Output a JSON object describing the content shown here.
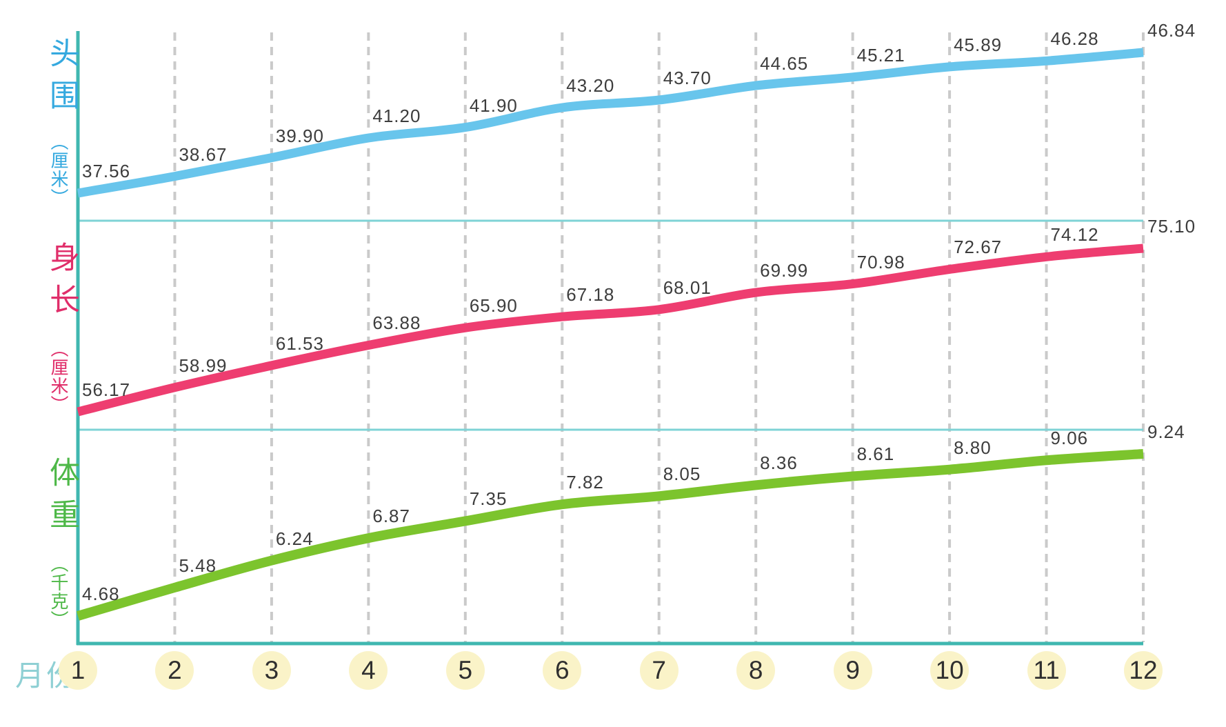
{
  "chart_data": {
    "type": "line",
    "x_label": "月份",
    "x": [
      1,
      2,
      3,
      4,
      5,
      6,
      7,
      8,
      9,
      10,
      11,
      12
    ],
    "value_label_decimals": 2,
    "series": [
      {
        "name": "头围",
        "unit": "（厘米）",
        "line_color": "#68c5ec",
        "title_color": "#35a9df",
        "values": [
          37.56,
          38.67,
          39.9,
          41.2,
          41.9,
          43.2,
          43.7,
          44.65,
          45.21,
          45.89,
          46.28,
          46.84
        ]
      },
      {
        "name": "身长",
        "unit": "（厘米）",
        "line_color": "#ee3d70",
        "title_color": "#e02e6a",
        "values": [
          56.17,
          58.99,
          61.53,
          63.88,
          65.9,
          67.18,
          68.01,
          69.99,
          70.98,
          72.67,
          74.12,
          75.1
        ]
      },
      {
        "name": "体重",
        "unit": "（千克）",
        "line_color": "#7cc42d",
        "title_color": "#4eb848",
        "values": [
          4.68,
          5.48,
          6.24,
          6.87,
          7.35,
          7.82,
          8.05,
          8.36,
          8.61,
          8.8,
          9.06,
          9.24
        ]
      }
    ],
    "grid": {
      "vertical_dashed": true,
      "dash_color": "#cacaca"
    },
    "axis_color": "#40b7b0",
    "separator_color": "#7ed3d6",
    "month_badge_color": "#faf3c8",
    "value_text_color": "#3d3d3d",
    "month_text_color": "#2f2f2f",
    "x_label_color": "#8fd0d4",
    "legend_position": "left-stacked-sections",
    "ylim_notes": {
      "head_circumference_cm": [
        37.56,
        46.84
      ],
      "body_length_cm": [
        56.17,
        75.1
      ],
      "weight_kg": [
        4.68,
        9.24
      ]
    }
  }
}
